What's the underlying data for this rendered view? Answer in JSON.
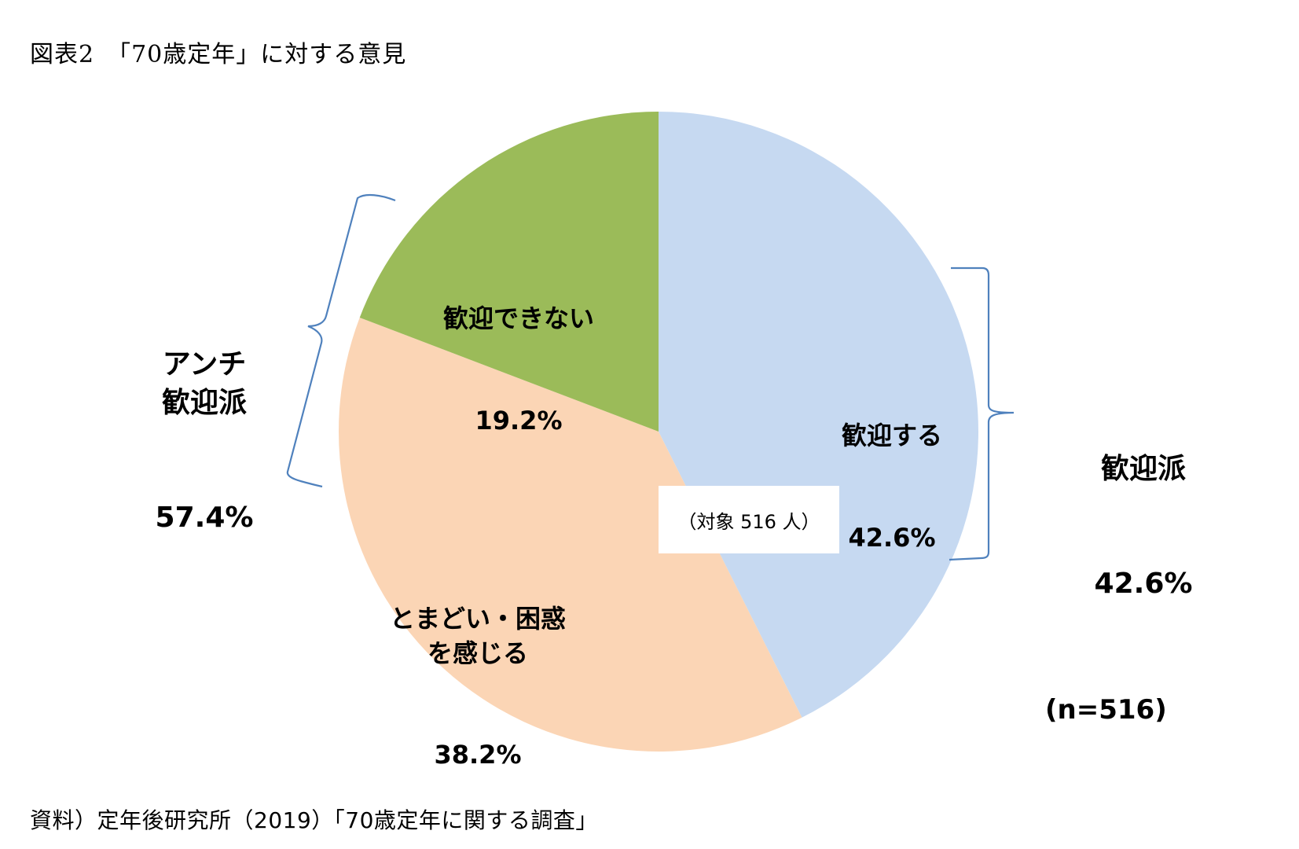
{
  "title": "図表2　「70歳定年」に対する意見",
  "source": "資料）定年後研究所（2019）「70歳定年に関する調査」",
  "sample_note": "（対象 516 人）",
  "n_label": "(n=516)",
  "slices": [
    {
      "label": "歓迎する",
      "value_label": "42.6%",
      "color": "#C6D9F1"
    },
    {
      "label": "とまどい・困惑\nを感じる",
      "value_label": "38.2%",
      "color": "#FBD5B5"
    },
    {
      "label": "歓迎できない",
      "value_label": "19.2%",
      "color": "#9BBB59"
    }
  ],
  "groups": {
    "anti": {
      "label": "アンチ\n歓迎派",
      "value_label": "57.4%"
    },
    "pro": {
      "label": "歓迎派",
      "value_label": "42.6%"
    }
  },
  "bracket_color": "#4F81BD",
  "chart_data": {
    "type": "pie",
    "title": "「70歳定年」に対する意見",
    "categories": [
      "歓迎する",
      "とまどい・困惑を感じる",
      "歓迎できない"
    ],
    "values": [
      42.6,
      38.2,
      19.2
    ],
    "colors": [
      "#C6D9F1",
      "#FBD5B5",
      "#9BBB59"
    ],
    "start_angle": "12 o'clock, clockwise",
    "groupings": [
      {
        "name": "歓迎派",
        "members": [
          "歓迎する"
        ],
        "value": 42.6
      },
      {
        "name": "アンチ歓迎派",
        "members": [
          "とまどい・困惑を感じる",
          "歓迎できない"
        ],
        "value": 57.4
      }
    ],
    "annotations": [
      "（対象 516 人）",
      "(n=516)"
    ],
    "source": "定年後研究所（2019）「70歳定年に関する調査」"
  }
}
